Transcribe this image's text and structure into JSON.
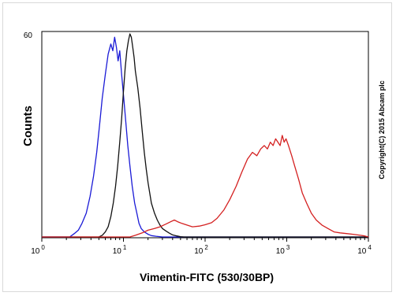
{
  "chart_data": {
    "type": "line",
    "title": "",
    "xlabel": "Vimentin-FITC (530/30BP)",
    "ylabel": "Counts",
    "x_scale": "log",
    "xlim": [
      1,
      10000
    ],
    "ylim": [
      0,
      60
    ],
    "y_tick_labels": [
      "60"
    ],
    "x_tick_labels": [
      {
        "base": "10",
        "exp": "0"
      },
      {
        "base": "10",
        "exp": "1"
      },
      {
        "base": "10",
        "exp": "2"
      },
      {
        "base": "10",
        "exp": "3"
      },
      {
        "base": "10",
        "exp": "4"
      }
    ],
    "copyright": "Copyright(C) 2015 Abcam plc",
    "grid": false,
    "series": [
      {
        "color": "#1a1ad6",
        "points": [
          [
            1,
            0
          ],
          [
            2.2,
            0
          ],
          [
            2.5,
            1
          ],
          [
            2.8,
            2
          ],
          [
            3.1,
            4
          ],
          [
            3.5,
            7
          ],
          [
            3.9,
            12
          ],
          [
            4.3,
            18
          ],
          [
            4.7,
            25
          ],
          [
            5.1,
            33
          ],
          [
            5.5,
            41
          ],
          [
            6.0,
            48
          ],
          [
            6.5,
            54
          ],
          [
            7.0,
            57
          ],
          [
            7.4,
            55
          ],
          [
            7.8,
            59
          ],
          [
            8.2,
            56
          ],
          [
            8.6,
            52
          ],
          [
            9.0,
            55
          ],
          [
            9.5,
            48
          ],
          [
            10,
            42
          ],
          [
            10.6,
            35
          ],
          [
            11.3,
            27
          ],
          [
            12,
            21
          ],
          [
            12.8,
            15
          ],
          [
            13.7,
            10
          ],
          [
            14.6,
            7
          ],
          [
            15.5,
            4
          ],
          [
            16.5,
            2.5
          ],
          [
            18,
            1.5
          ],
          [
            20,
            0.8
          ],
          [
            22,
            0.4
          ],
          [
            25,
            0.2
          ],
          [
            30,
            0
          ],
          [
            10000,
            0
          ]
        ]
      },
      {
        "color": "#111111",
        "points": [
          [
            1,
            0
          ],
          [
            5,
            0
          ],
          [
            5.5,
            0.5
          ],
          [
            6,
            1.5
          ],
          [
            6.5,
            3
          ],
          [
            7,
            6
          ],
          [
            7.5,
            10
          ],
          [
            8,
            15
          ],
          [
            8.5,
            21
          ],
          [
            9,
            28
          ],
          [
            9.5,
            35
          ],
          [
            10,
            43
          ],
          [
            10.5,
            50
          ],
          [
            11,
            55
          ],
          [
            11.5,
            58
          ],
          [
            12,
            60
          ],
          [
            12.5,
            59
          ],
          [
            13,
            56
          ],
          [
            13.5,
            53
          ],
          [
            14,
            49
          ],
          [
            15,
            44
          ],
          [
            16,
            38
          ],
          [
            17,
            31
          ],
          [
            18,
            25
          ],
          [
            19,
            20
          ],
          [
            20,
            16
          ],
          [
            21,
            13
          ],
          [
            22,
            10
          ],
          [
            24,
            7
          ],
          [
            26,
            5
          ],
          [
            28,
            3.5
          ],
          [
            30,
            2.5
          ],
          [
            33,
            1.8
          ],
          [
            36,
            1.2
          ],
          [
            40,
            0.6
          ],
          [
            45,
            0.3
          ],
          [
            50,
            0.1
          ],
          [
            55,
            0
          ],
          [
            10000,
            0
          ]
        ]
      },
      {
        "color": "#d42020",
        "points": [
          [
            1,
            0
          ],
          [
            12,
            0
          ],
          [
            14,
            0.5
          ],
          [
            17,
            1.2
          ],
          [
            20,
            2
          ],
          [
            24,
            2.5
          ],
          [
            28,
            3
          ],
          [
            33,
            3.8
          ],
          [
            38,
            4.5
          ],
          [
            42,
            5
          ],
          [
            46,
            4.5
          ],
          [
            52,
            4
          ],
          [
            60,
            3.5
          ],
          [
            70,
            3
          ],
          [
            85,
            3.2
          ],
          [
            100,
            3.6
          ],
          [
            120,
            4.2
          ],
          [
            140,
            5.5
          ],
          [
            170,
            8
          ],
          [
            200,
            11
          ],
          [
            240,
            15
          ],
          [
            280,
            19
          ],
          [
            330,
            23
          ],
          [
            380,
            25
          ],
          [
            430,
            24
          ],
          [
            480,
            26
          ],
          [
            530,
            27
          ],
          [
            580,
            26
          ],
          [
            630,
            28
          ],
          [
            680,
            27
          ],
          [
            730,
            29
          ],
          [
            780,
            28
          ],
          [
            830,
            27
          ],
          [
            880,
            30
          ],
          [
            930,
            28
          ],
          [
            980,
            29
          ],
          [
            1050,
            27
          ],
          [
            1150,
            24
          ],
          [
            1250,
            21
          ],
          [
            1400,
            17
          ],
          [
            1550,
            13
          ],
          [
            1750,
            10
          ],
          [
            2000,
            7
          ],
          [
            2300,
            5
          ],
          [
            2700,
            3.5
          ],
          [
            3200,
            2.5
          ],
          [
            3800,
            1.5
          ],
          [
            4500,
            1.2
          ],
          [
            5400,
            1
          ],
          [
            6500,
            0.8
          ],
          [
            8000,
            0.5
          ],
          [
            9000,
            0.3
          ],
          [
            10000,
            0
          ]
        ]
      }
    ]
  }
}
